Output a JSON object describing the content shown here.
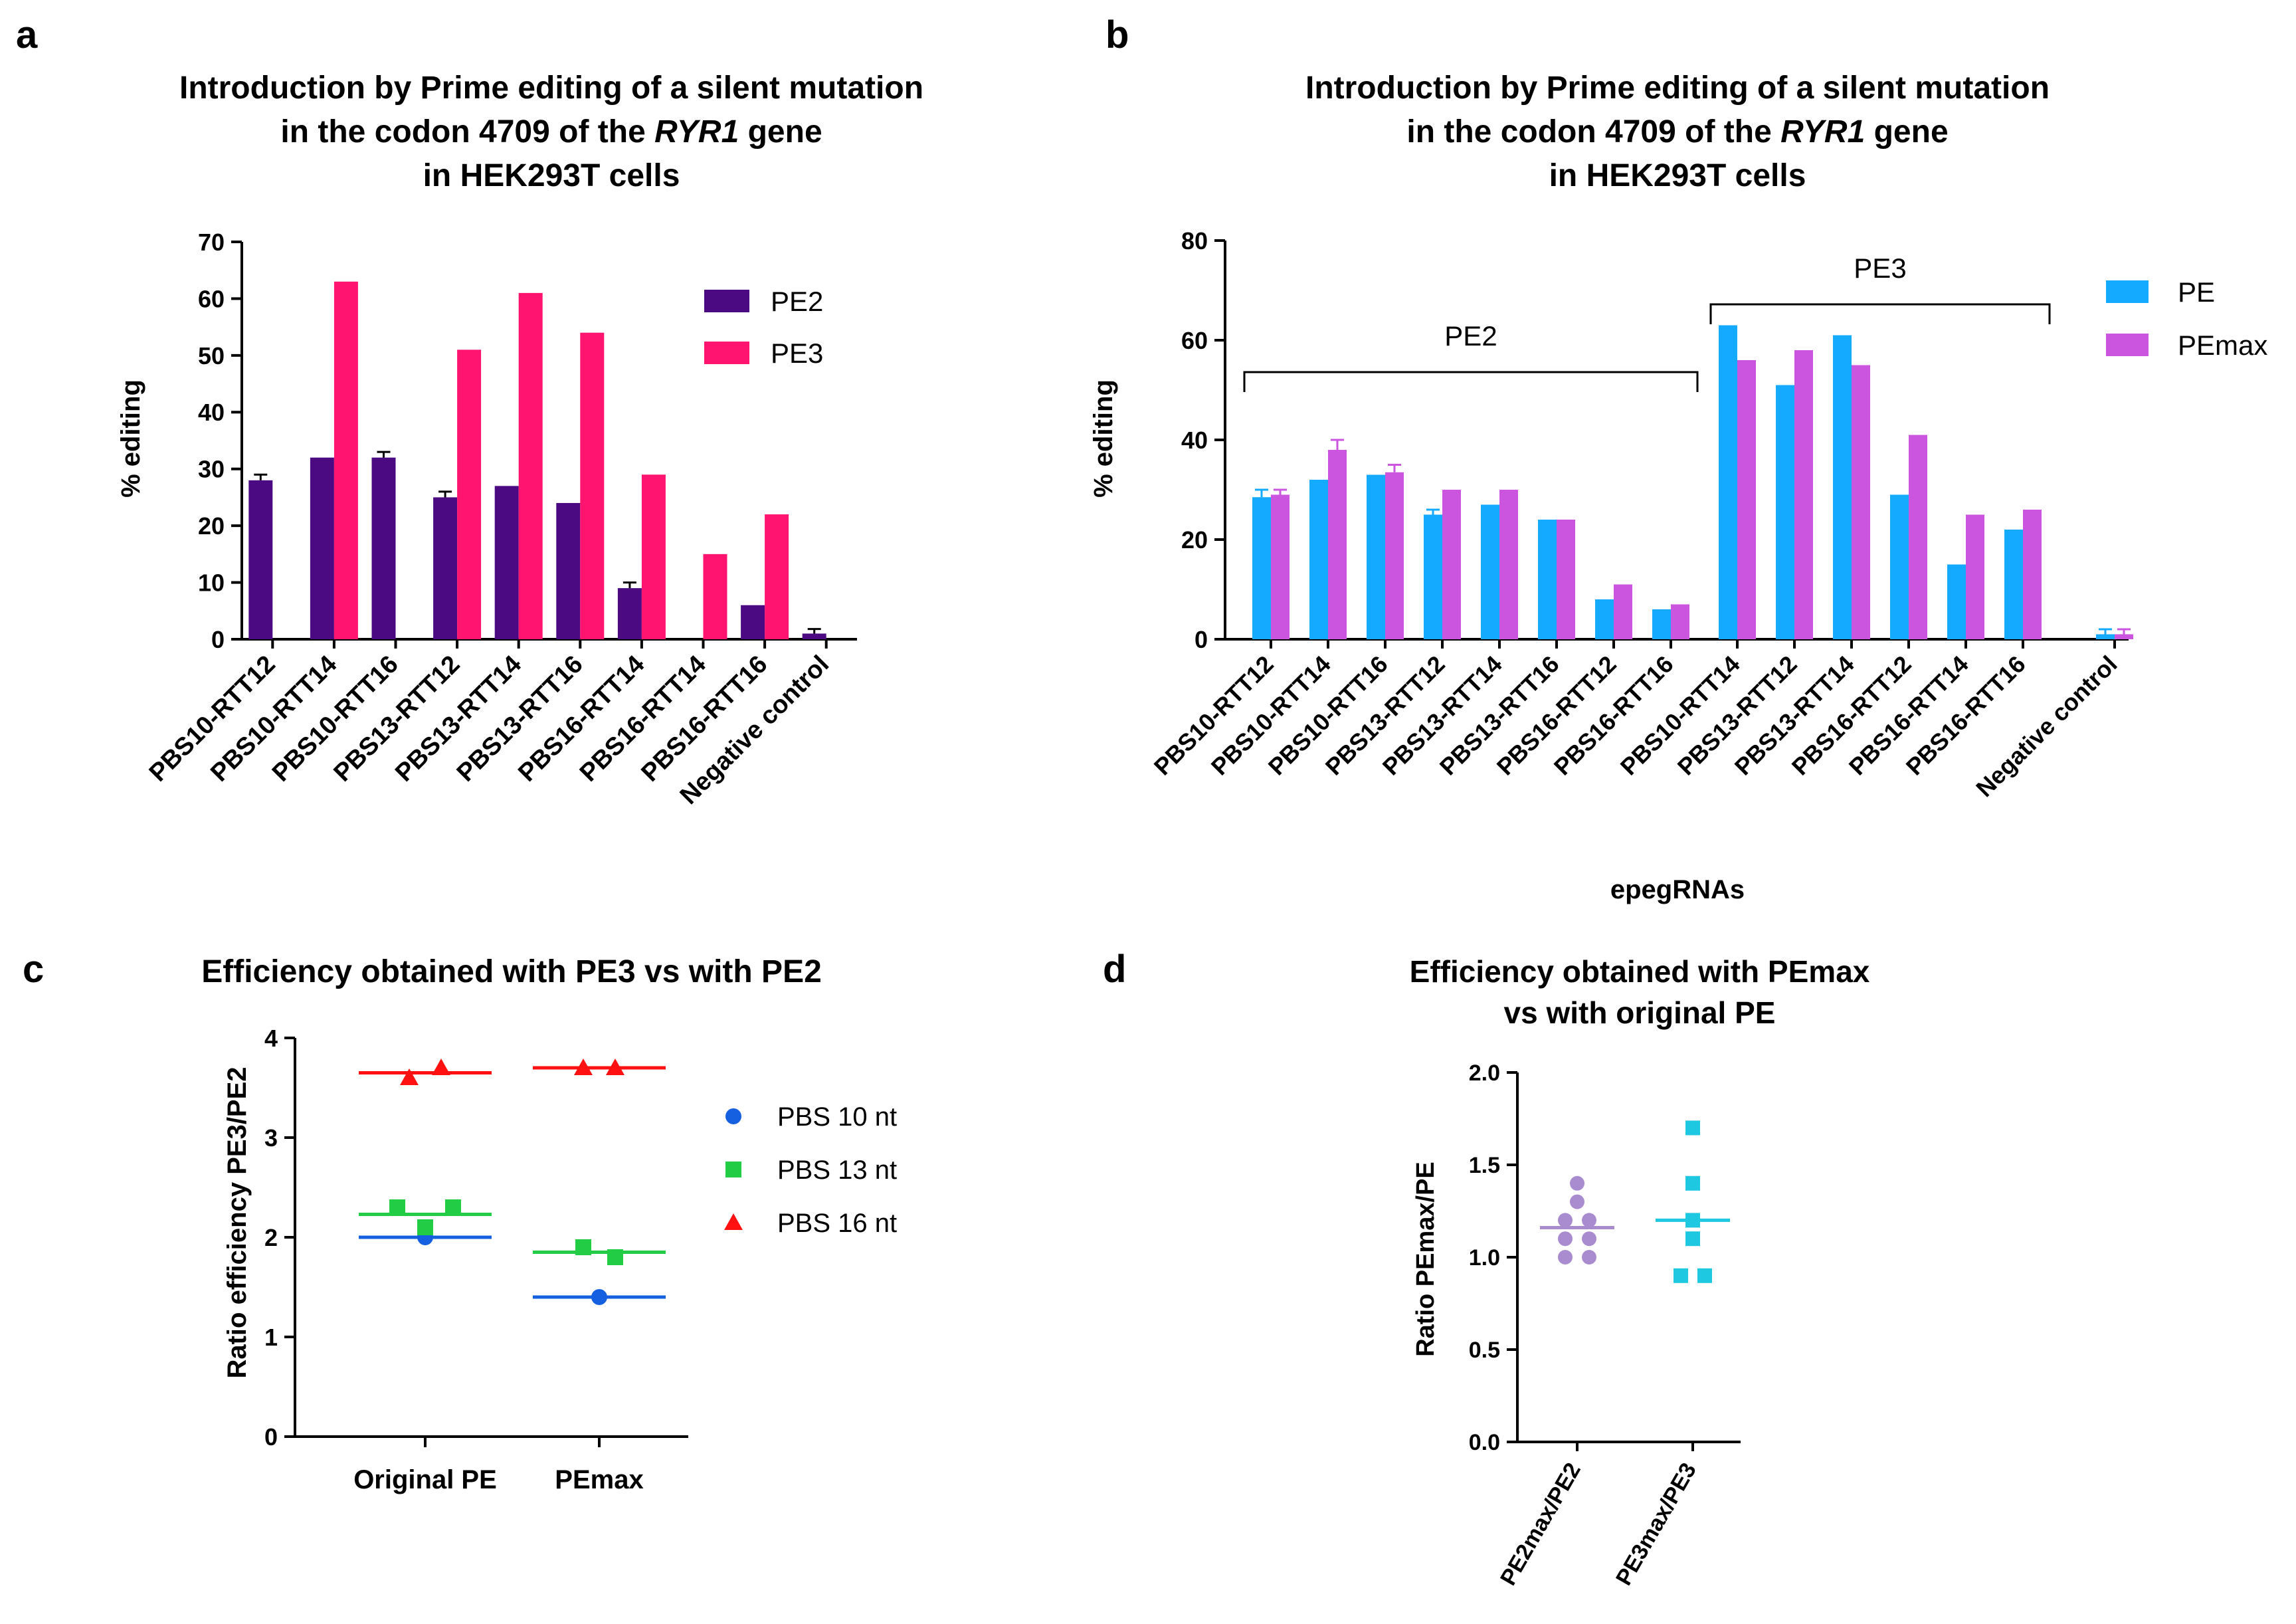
{
  "panel_letters": [
    "a",
    "b",
    "c",
    "d"
  ],
  "chart_data": [
    {
      "type": "bar",
      "panel": "a",
      "title_lines": [
        "Introduction by Prime editing of a silent mutation",
        "in the codon 4709 of the ",
        "RYR1",
        " gene",
        "in HEK293T cells"
      ],
      "ylabel": "% editing",
      "xlabel": "",
      "ylim": [
        0,
        70
      ],
      "yticks": [
        "0",
        "10",
        "20",
        "30",
        "40",
        "50",
        "60",
        "70"
      ],
      "categories": [
        "PBS10-RTT12",
        "PBS10-RTT14",
        "PBS10-RTT16",
        "PBS13-RTT12",
        "PBS13-RTT14",
        "PBS13-RTT16",
        "PBS16-RTT14",
        "PBS16-RTT14",
        "PBS16-RTT16",
        "Negative control"
      ],
      "series": [
        {
          "name": "PE2",
          "color": "#4b0a82",
          "values": [
            28,
            32,
            32,
            25,
            27,
            24,
            9,
            null,
            6,
            1
          ],
          "errors": [
            1,
            0,
            1,
            1,
            0,
            0,
            1,
            0,
            0,
            0.8
          ]
        },
        {
          "name": "PE3",
          "color": "#ff1470",
          "values": [
            null,
            63,
            null,
            51,
            61,
            54,
            29,
            15,
            22,
            null
          ],
          "errors": [
            0,
            0,
            0,
            0,
            0,
            0,
            0,
            0,
            0,
            0
          ]
        }
      ],
      "legend_position": "top-right",
      "grid": false
    },
    {
      "type": "bar",
      "panel": "b",
      "title_lines": [
        "Introduction by Prime editing of a silent mutation",
        "in the codon 4709 of the ",
        "RYR1",
        " gene",
        "in HEK293T cells"
      ],
      "ylabel": "% editing",
      "xlabel": "epegRNAs",
      "ylim": [
        0,
        80
      ],
      "yticks": [
        "0",
        "20",
        "40",
        "60",
        "80"
      ],
      "groups": [
        {
          "label": "PE2",
          "categories": [
            "PBS10-RTT12",
            "PBS10-RTT14",
            "PBS10-RTT16",
            "PBS13-RTT12",
            "PBS13-RTT14",
            "PBS13-RTT16",
            "PBS16-RTT12",
            "PBS16-RTT16"
          ],
          "PE": [
            28.5,
            32,
            33,
            25,
            27,
            24,
            8,
            6
          ],
          "PEmax": [
            29,
            38,
            33.5,
            30,
            30,
            24,
            11,
            7
          ],
          "PE_err": [
            1.5,
            0,
            0,
            1,
            0,
            0,
            0,
            0
          ],
          "PEmax_err": [
            1,
            2,
            1.5,
            0,
            0,
            0,
            0,
            0
          ]
        },
        {
          "label": "PE3",
          "categories": [
            "PBS10-RTT14",
            "PBS13-RTT12",
            "PBS13-RTT14",
            "PBS16-RTT12",
            "PBS16-RTT14",
            "PBS16-RTT16"
          ],
          "PE": [
            63,
            51,
            61,
            29,
            15,
            22
          ],
          "PEmax": [
            56,
            58,
            55,
            41,
            25,
            26
          ],
          "PE_err": [
            0,
            0,
            0,
            0,
            0,
            0
          ],
          "PEmax_err": [
            0,
            0,
            0,
            0,
            0,
            0
          ]
        },
        {
          "label": "",
          "categories": [
            "Negative control"
          ],
          "PE": [
            1
          ],
          "PEmax": [
            1
          ],
          "PE_err": [
            1
          ],
          "PEmax_err": [
            1
          ]
        }
      ],
      "series": [
        {
          "name": "PE",
          "color": "#14aaff"
        },
        {
          "name": "PEmax",
          "color": "#cc55e0"
        }
      ],
      "legend_position": "top-right",
      "grid": false
    },
    {
      "type": "scatter",
      "panel": "c",
      "title": "Efficiency obtained with PE3 vs with PE2",
      "ylabel": "Ratio efficiency PE3/PE2",
      "xlabel": "",
      "categories": [
        "Original PE",
        "PEmax"
      ],
      "ylim": [
        0,
        4
      ],
      "yticks": [
        "0",
        "1",
        "2",
        "3",
        "4"
      ],
      "series": [
        {
          "name": "PBS 10 nt",
          "color": "#1560e0",
          "marker": "circle",
          "points": [
            [
              0,
              2.0
            ]
          ],
          "means": [
            2.0,
            1.4
          ],
          "points2": [
            [
              1,
              1.4
            ]
          ]
        },
        {
          "name": "PBS 13 nt",
          "color": "#22cc44",
          "marker": "square",
          "points": [
            [
              0,
              2.3
            ],
            [
              0,
              2.1
            ],
            [
              0,
              2.3
            ]
          ],
          "means": [
            2.23,
            1.85
          ],
          "points2": [
            [
              1,
              1.9
            ],
            [
              1,
              1.8
            ]
          ]
        },
        {
          "name": "PBS 16 nt",
          "color": "#ff1111",
          "marker": "triangle",
          "points": [
            [
              0,
              3.6
            ],
            [
              0,
              3.7
            ]
          ],
          "means": [
            3.65,
            3.7
          ],
          "points2": [
            [
              1,
              3.7
            ],
            [
              1,
              3.7
            ]
          ]
        }
      ],
      "legend_position": "right",
      "grid": false
    },
    {
      "type": "scatter",
      "panel": "d",
      "title_lines": [
        "Efficiency obtained with PEmax",
        "vs with original PE"
      ],
      "ylabel": "Ratio PEmax/PE",
      "xlabel": "",
      "categories": [
        "PE2max/PE2",
        "PE3max/PE3"
      ],
      "ylim": [
        0,
        2.0
      ],
      "yticks": [
        "0.0",
        "0.5",
        "1.0",
        "1.5",
        "2.0"
      ],
      "series": [
        {
          "name": "PE2max/PE2",
          "color": "#a98cd0",
          "marker": "circle",
          "values": [
            1.4,
            1.3,
            1.2,
            1.2,
            1.1,
            1.1,
            1.0,
            1.0
          ],
          "mean": 1.16
        },
        {
          "name": "PE3max/PE3",
          "color": "#1ec8e0",
          "marker": "square",
          "values": [
            1.7,
            1.4,
            1.2,
            1.1,
            0.9,
            0.9
          ],
          "mean": 1.2
        }
      ],
      "grid": false
    }
  ]
}
